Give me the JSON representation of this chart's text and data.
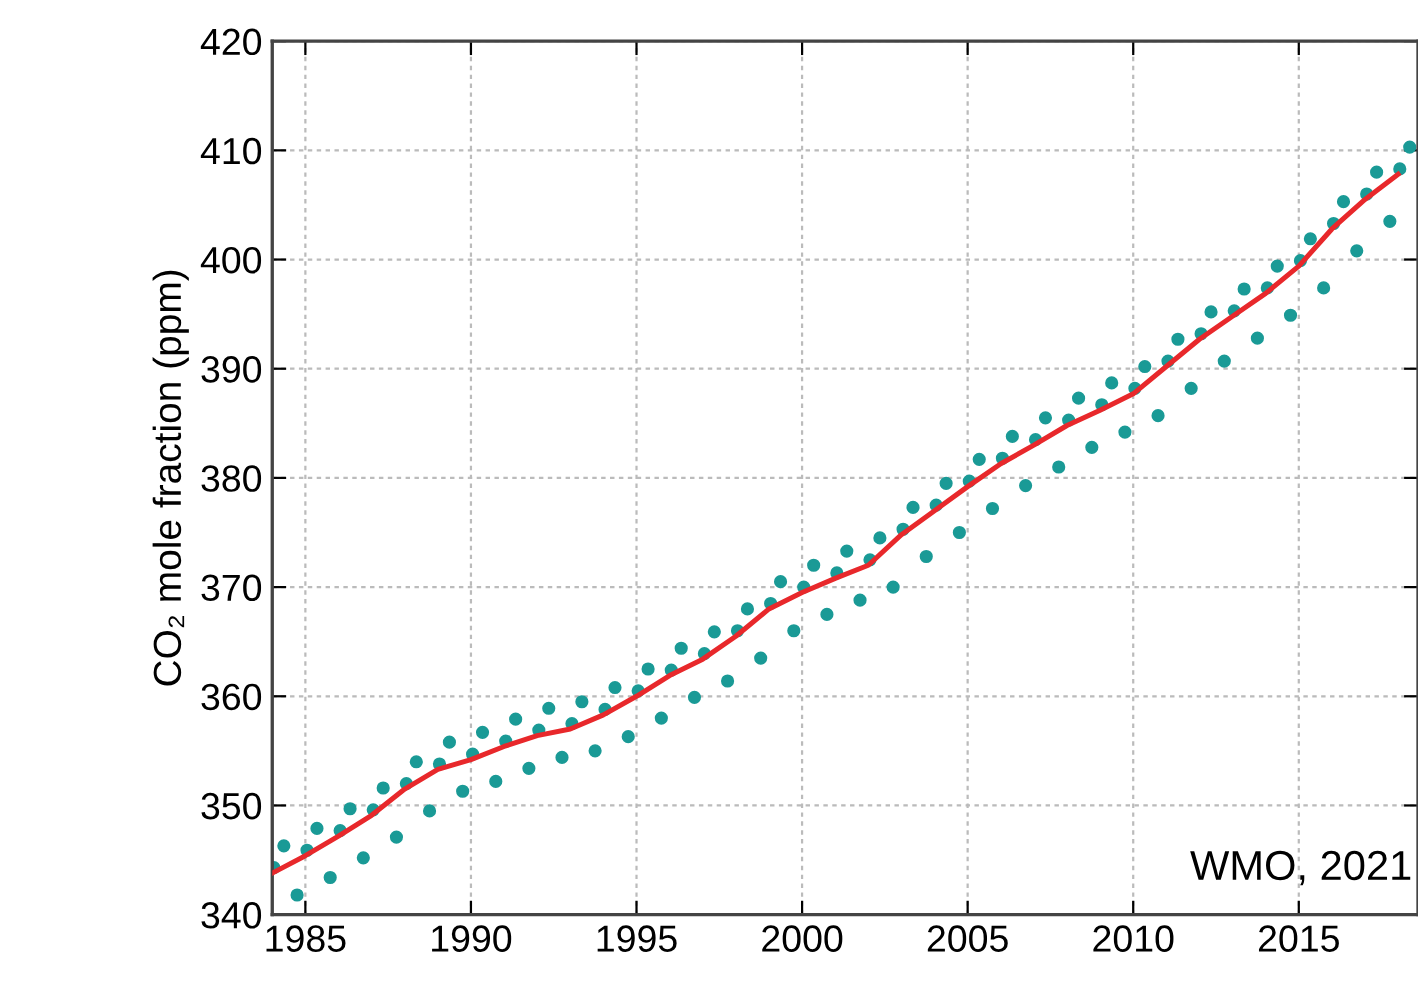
{
  "chart_data": {
    "type": "scatter",
    "ylabel": "CO₂ mole fraction (ppm)",
    "annotations": [
      "WMO, 2021"
    ],
    "xlim": [
      1984,
      2018.6
    ],
    "xticks": [
      1985,
      1990,
      1995,
      2000,
      2005,
      2010,
      2015
    ],
    "ylim": [
      340,
      420
    ],
    "yticks": [
      340,
      350,
      360,
      370,
      380,
      390,
      400,
      410,
      420
    ],
    "grid": true,
    "series": [
      {
        "marker": "circle",
        "color": "#1a9a96",
        "x": [
          1984.05,
          1984.35,
          1984.75,
          1985.05,
          1985.35,
          1985.75,
          1986.05,
          1986.35,
          1986.75,
          1987.05,
          1987.35,
          1987.75,
          1988.05,
          1988.35,
          1988.75,
          1989.05,
          1989.35,
          1989.75,
          1990.05,
          1990.35,
          1990.75,
          1991.05,
          1991.35,
          1991.75,
          1992.05,
          1992.35,
          1992.75,
          1993.05,
          1993.35,
          1993.75,
          1994.05,
          1994.35,
          1994.75,
          1995.05,
          1995.35,
          1995.75,
          1996.05,
          1996.35,
          1996.75,
          1997.05,
          1997.35,
          1997.75,
          1998.05,
          1998.35,
          1998.75,
          1999.05,
          1999.35,
          1999.75,
          2000.05,
          2000.35,
          2000.75,
          2001.05,
          2001.35,
          2001.75,
          2002.05,
          2002.35,
          2002.75,
          2003.05,
          2003.35,
          2003.75,
          2004.05,
          2004.35,
          2004.75,
          2005.05,
          2005.35,
          2005.75,
          2006.05,
          2006.35,
          2006.75,
          2007.05,
          2007.35,
          2007.75,
          2008.05,
          2008.35,
          2008.75,
          2009.05,
          2009.35,
          2009.75,
          2010.05,
          2010.35,
          2010.75,
          2011.05,
          2011.35,
          2011.75,
          2012.05,
          2012.35,
          2012.75,
          2013.05,
          2013.35,
          2013.75,
          2014.05,
          2014.35,
          2014.75,
          2015.05,
          2015.35,
          2015.75,
          2016.05,
          2016.35,
          2016.75,
          2017.05,
          2017.35,
          2017.75,
          2018.05,
          2018.35
        ],
        "values": [
          344.3,
          346.3,
          341.8,
          345.9,
          347.9,
          343.4,
          347.7,
          349.7,
          345.2,
          349.6,
          351.6,
          347.1,
          352.0,
          354.0,
          349.5,
          353.8,
          355.8,
          351.3,
          354.7,
          356.7,
          352.2,
          355.9,
          357.9,
          353.4,
          356.9,
          358.9,
          354.4,
          357.5,
          359.5,
          355.0,
          358.8,
          360.8,
          356.3,
          360.5,
          362.5,
          358.0,
          362.4,
          364.4,
          359.9,
          363.9,
          365.9,
          361.4,
          366.0,
          368.0,
          363.5,
          368.5,
          370.5,
          366.0,
          370.0,
          372.0,
          367.5,
          371.3,
          373.3,
          368.8,
          372.5,
          374.5,
          370.0,
          375.3,
          377.3,
          372.8,
          377.5,
          379.5,
          375.0,
          379.7,
          381.7,
          377.2,
          381.8,
          383.8,
          379.3,
          383.5,
          385.5,
          381.0,
          385.3,
          387.3,
          382.8,
          386.7,
          388.7,
          384.2,
          388.2,
          390.2,
          385.7,
          390.7,
          392.7,
          388.2,
          393.2,
          395.2,
          390.7,
          395.3,
          397.3,
          392.8,
          397.4,
          399.4,
          394.9,
          399.9,
          401.9,
          397.4,
          403.3,
          405.3,
          400.8,
          406.0,
          408.0,
          403.5,
          408.3,
          410.3
        ]
      },
      {
        "type": "line",
        "marker": "none",
        "line_style": "solid",
        "color": "#e8282b",
        "x": [
          1984,
          1985,
          1986,
          1987,
          1988,
          1989,
          1990,
          1991,
          1992,
          1993,
          1994,
          1995,
          1996,
          1997,
          1998,
          1999,
          2000,
          2001,
          2002,
          2003,
          2004,
          2005,
          2006,
          2007,
          2008,
          2009,
          2010,
          2011,
          2012,
          2013,
          2014,
          2015,
          2016,
          2017,
          2018
        ],
        "values": [
          343.8,
          345.4,
          347.2,
          349.1,
          351.5,
          353.3,
          354.2,
          355.4,
          356.4,
          357.0,
          358.3,
          360.0,
          361.9,
          363.4,
          365.5,
          368.0,
          369.5,
          370.8,
          372.0,
          374.8,
          377.0,
          379.2,
          381.3,
          383.0,
          384.8,
          386.2,
          387.7,
          390.2,
          392.7,
          394.8,
          396.9,
          399.4,
          402.8,
          405.5,
          407.8
        ]
      }
    ]
  }
}
